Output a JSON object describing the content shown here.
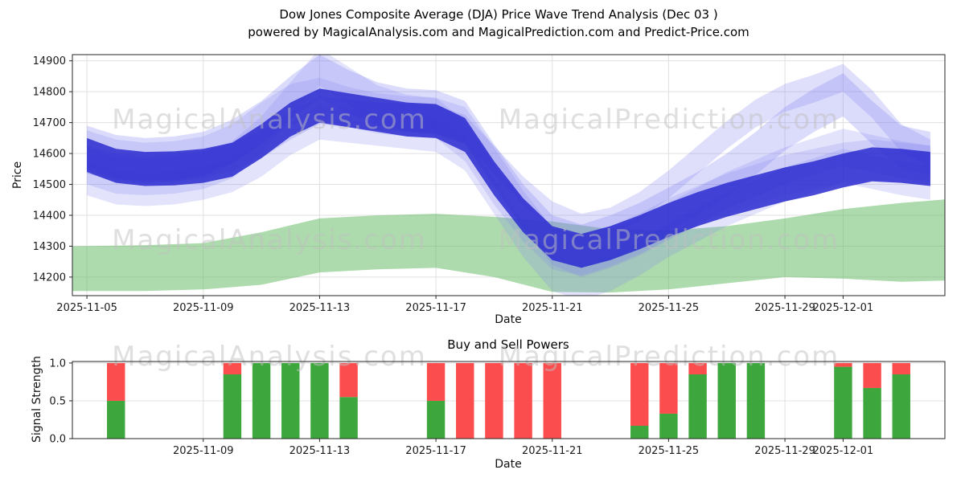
{
  "page": {
    "title_line1": "Dow Jones Composite Average (DJA) Price Wave Trend Analysis (Dec 03 )",
    "title_line2": "powered by MagicalAnalysis.com and MagicalPrediction.com and Predict-Price.com"
  },
  "watermarks": {
    "left": "MagicalAnalysis.com",
    "right": "MagicalPrediction.com"
  },
  "colors": {
    "dark_blue": "#2b2bd0",
    "light_blue": "#7f7ff0",
    "green_band": "#5cb85c",
    "bar_green": "#3da63d",
    "bar_red": "#fb4d4d",
    "grid": "#e0e0e0",
    "axis": "#262626",
    "watermark": "#bfbfbf"
  },
  "chart_data": [
    {
      "type": "area",
      "name": "price-wave-trend",
      "title": "Dow Jones Composite Average (DJA) Price Wave Trend Analysis (Dec 03 )",
      "subtitle": "powered by MagicalAnalysis.com and MagicalPrediction.com and Predict-Price.com",
      "xlabel": "Date",
      "ylabel": "Price",
      "ylim": [
        14140,
        14920
      ],
      "xlim_days": [
        -0.5,
        29.5
      ],
      "grid": true,
      "yticks": [
        14200,
        14300,
        14400,
        14500,
        14600,
        14700,
        14800,
        14900
      ],
      "xticks": [
        {
          "day": 0,
          "label": "2025-11-05"
        },
        {
          "day": 4,
          "label": "2025-11-09"
        },
        {
          "day": 8,
          "label": "2025-11-13"
        },
        {
          "day": 12,
          "label": "2025-11-17"
        },
        {
          "day": 16,
          "label": "2025-11-21"
        },
        {
          "day": 20,
          "label": "2025-11-25"
        },
        {
          "day": 24,
          "label": "2025-11-29"
        },
        {
          "day": 26,
          "label": "2025-12-01"
        }
      ],
      "green_support_band": {
        "x": [
          -0.5,
          2,
          4,
          6,
          8,
          10,
          12,
          14,
          16,
          18,
          20,
          22,
          24,
          26,
          28,
          30
        ],
        "lower": [
          14155,
          14155,
          14160,
          14175,
          14215,
          14225,
          14230,
          14200,
          14152,
          14150,
          14160,
          14180,
          14200,
          14195,
          14185,
          14190
        ],
        "upper": [
          14300,
          14303,
          14310,
          14345,
          14390,
          14400,
          14405,
          14395,
          14380,
          14355,
          14350,
          14365,
          14390,
          14420,
          14440,
          14455
        ]
      },
      "wave_x_days": [
        0,
        1,
        2,
        3,
        4,
        5,
        6,
        7,
        8,
        9,
        10,
        11,
        12,
        13,
        14,
        15,
        16,
        17,
        18,
        19,
        20,
        21,
        22,
        23,
        24,
        25,
        26,
        27,
        28,
        29
      ],
      "price_waves": [
        {
          "name": "consensus-wave",
          "tone": "dark",
          "halfwidth": 55,
          "opacity": 0.85,
          "y": [
            14595,
            14560,
            14550,
            14552,
            14560,
            14580,
            14640,
            14710,
            14755,
            14740,
            14725,
            14710,
            14705,
            14660,
            14520,
            14400,
            14310,
            14285,
            14310,
            14345,
            14385,
            14420,
            14450,
            14475,
            14500,
            14520,
            14545,
            14565,
            14560,
            14550
          ]
        },
        {
          "name": "wave-2",
          "tone": "light",
          "halfwidth": 70,
          "opacity": 0.28,
          "y": [
            14620,
            14590,
            14580,
            14585,
            14600,
            14640,
            14700,
            14780,
            14850,
            14800,
            14760,
            14740,
            14735,
            14700,
            14560,
            14430,
            14330,
            14300,
            14330,
            14370,
            14420,
            14470,
            14530,
            14600,
            14680,
            14740,
            14790,
            14700,
            14620,
            14600
          ]
        },
        {
          "name": "wave-3",
          "tone": "light",
          "halfwidth": 60,
          "opacity": 0.22,
          "y": [
            14560,
            14530,
            14525,
            14530,
            14545,
            14580,
            14660,
            14770,
            14880,
            14820,
            14760,
            14730,
            14720,
            14690,
            14560,
            14420,
            14300,
            14260,
            14290,
            14330,
            14380,
            14430,
            14480,
            14520,
            14560,
            14590,
            14620,
            14600,
            14580,
            14565
          ]
        },
        {
          "name": "wave-4",
          "tone": "light",
          "halfwidth": 55,
          "opacity": 0.22,
          "y": [
            14520,
            14490,
            14485,
            14490,
            14505,
            14530,
            14580,
            14650,
            14700,
            14690,
            14680,
            14670,
            14660,
            14600,
            14460,
            14320,
            14210,
            14180,
            14210,
            14260,
            14320,
            14370,
            14420,
            14460,
            14500,
            14530,
            14560,
            14540,
            14520,
            14505
          ]
        },
        {
          "name": "wave-5",
          "tone": "light",
          "halfwidth": 45,
          "opacity": 0.25,
          "y": [
            14580,
            14555,
            14550,
            14555,
            14565,
            14590,
            14630,
            14690,
            14740,
            14730,
            14720,
            14715,
            14710,
            14680,
            14580,
            14480,
            14400,
            14360,
            14380,
            14430,
            14500,
            14580,
            14660,
            14730,
            14780,
            14810,
            14845,
            14760,
            14650,
            14600
          ]
        },
        {
          "name": "wave-6",
          "tone": "light",
          "halfwidth": 65,
          "opacity": 0.2,
          "y": [
            14610,
            14580,
            14570,
            14575,
            14590,
            14630,
            14700,
            14760,
            14780,
            14750,
            14730,
            14720,
            14715,
            14640,
            14500,
            14380,
            14290,
            14270,
            14300,
            14340,
            14390,
            14430,
            14470,
            14500,
            14530,
            14550,
            14570,
            14580,
            14570,
            14560
          ]
        }
      ]
    },
    {
      "type": "bar",
      "name": "buy-sell-powers",
      "title": "Buy and Sell Powers",
      "xlabel": "Date",
      "ylabel": "Signal Strength",
      "ylim": [
        0,
        1.02
      ],
      "xlim_days": [
        -0.5,
        29.5
      ],
      "grid": true,
      "yticks": [
        0.0,
        0.5,
        1.0
      ],
      "xticks": [
        {
          "day": 4,
          "label": "2025-11-09"
        },
        {
          "day": 8,
          "label": "2025-11-13"
        },
        {
          "day": 12,
          "label": "2025-11-17"
        },
        {
          "day": 16,
          "label": "2025-11-21"
        },
        {
          "day": 20,
          "label": "2025-11-25"
        },
        {
          "day": 24,
          "label": "2025-11-29"
        },
        {
          "day": 26,
          "label": "2025-12-01"
        }
      ],
      "series": [
        {
          "name": "Buy",
          "color_key": "bar_green"
        },
        {
          "name": "Sell",
          "color_key": "bar_red"
        }
      ],
      "bars": [
        {
          "date": "2025-11-06",
          "day": 1,
          "buy": 0.5,
          "sell": 0.5
        },
        {
          "date": "2025-11-10",
          "day": 5,
          "buy": 0.85,
          "sell": 0.15
        },
        {
          "date": "2025-11-11",
          "day": 6,
          "buy": 1.0,
          "sell": 0.0
        },
        {
          "date": "2025-11-12",
          "day": 7,
          "buy": 1.0,
          "sell": 0.0
        },
        {
          "date": "2025-11-13",
          "day": 8,
          "buy": 1.0,
          "sell": 0.0
        },
        {
          "date": "2025-11-14",
          "day": 9,
          "buy": 0.55,
          "sell": 0.45
        },
        {
          "date": "2025-11-17",
          "day": 12,
          "buy": 0.5,
          "sell": 0.5
        },
        {
          "date": "2025-11-18",
          "day": 13,
          "buy": 0.0,
          "sell": 1.0
        },
        {
          "date": "2025-11-19",
          "day": 14,
          "buy": 0.0,
          "sell": 1.0
        },
        {
          "date": "2025-11-20",
          "day": 15,
          "buy": 0.0,
          "sell": 1.0
        },
        {
          "date": "2025-11-21",
          "day": 16,
          "buy": 0.0,
          "sell": 1.0
        },
        {
          "date": "2025-11-24",
          "day": 19,
          "buy": 0.17,
          "sell": 0.83
        },
        {
          "date": "2025-11-25",
          "day": 20,
          "buy": 0.33,
          "sell": 0.67
        },
        {
          "date": "2025-11-26",
          "day": 21,
          "buy": 0.85,
          "sell": 0.15
        },
        {
          "date": "2025-11-27",
          "day": 22,
          "buy": 1.0,
          "sell": 0.0
        },
        {
          "date": "2025-11-28",
          "day": 23,
          "buy": 1.0,
          "sell": 0.0
        },
        {
          "date": "2025-12-01",
          "day": 26,
          "buy": 0.95,
          "sell": 0.05
        },
        {
          "date": "2025-12-02",
          "day": 27,
          "buy": 0.67,
          "sell": 0.33
        },
        {
          "date": "2025-12-03",
          "day": 28,
          "buy": 0.85,
          "sell": 0.15
        }
      ]
    }
  ]
}
